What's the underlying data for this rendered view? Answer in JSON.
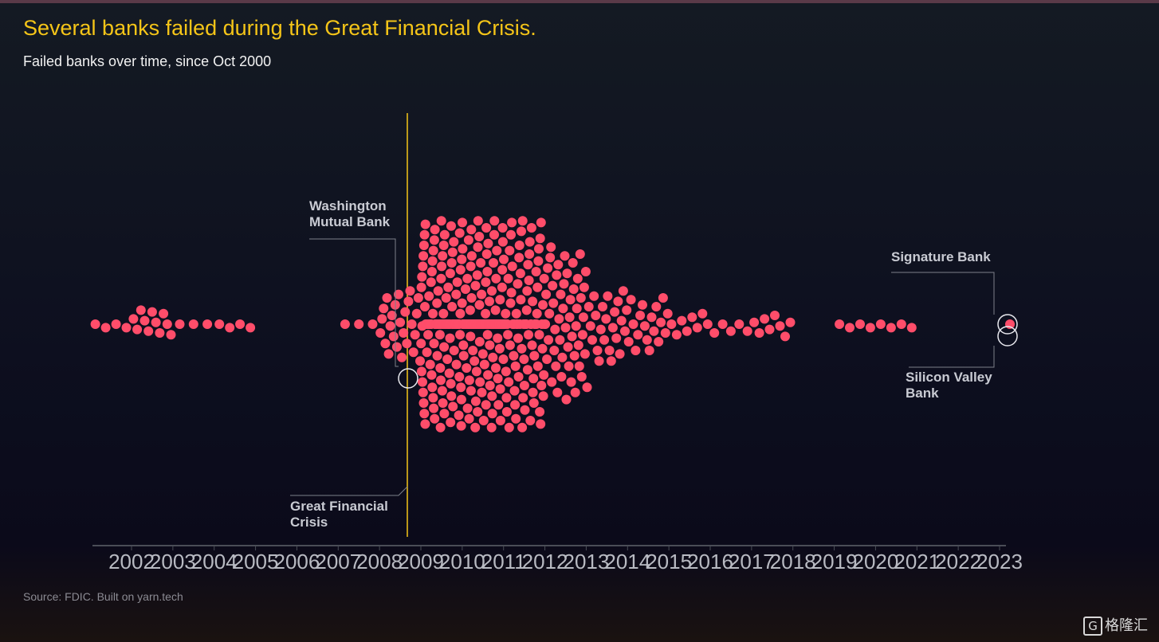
{
  "title": "Several banks failed during the Great Financial Crisis.",
  "subtitle": "Failed banks over time, since Oct 2000",
  "source": "Source: FDIC. Built on yarn.tech",
  "watermark": "格隆汇",
  "colors": {
    "dot": "#ff4d6a",
    "accent": "#f5c518",
    "annotation": "#c9cbd3"
  },
  "chart_data": {
    "type": "scatter",
    "subtype": "beeswarm",
    "title": "Several banks failed during the Great Financial Crisis.",
    "subtitle": "Failed banks over time, since Oct 2000",
    "x_ticks": [
      "2002",
      "2003",
      "2004",
      "2005",
      "2006",
      "2007",
      "2008",
      "2009",
      "2010",
      "2011",
      "2012",
      "2013",
      "2014",
      "2015",
      "2016",
      "2017",
      "2018",
      "2019",
      "2020",
      "2021",
      "2022",
      "2023"
    ],
    "xlim": [
      2001.5,
      2023.5
    ],
    "grid": false,
    "legend": "none",
    "yearly_failures": [
      {
        "year": 2001,
        "count": 4
      },
      {
        "year": 2002,
        "count": 11
      },
      {
        "year": 2003,
        "count": 3
      },
      {
        "year": 2004,
        "count": 4
      },
      {
        "year": 2005,
        "count": 0
      },
      {
        "year": 2006,
        "count": 0
      },
      {
        "year": 2007,
        "count": 3
      },
      {
        "year": 2008,
        "count": 25
      },
      {
        "year": 2009,
        "count": 140
      },
      {
        "year": 2010,
        "count": 157
      },
      {
        "year": 2011,
        "count": 92
      },
      {
        "year": 2012,
        "count": 51
      },
      {
        "year": 2013,
        "count": 24
      },
      {
        "year": 2014,
        "count": 18
      },
      {
        "year": 2015,
        "count": 8
      },
      {
        "year": 2016,
        "count": 5
      },
      {
        "year": 2017,
        "count": 8
      },
      {
        "year": 2018,
        "count": 0
      },
      {
        "year": 2019,
        "count": 4
      },
      {
        "year": 2020,
        "count": 4
      },
      {
        "year": 2021,
        "count": 0
      },
      {
        "year": 2022,
        "count": 0
      },
      {
        "year": 2023,
        "count": 2
      }
    ],
    "annotations": [
      {
        "lines": [
          "Washington",
          "Mutual Bank"
        ],
        "x": 2008.74
      },
      {
        "lines": [
          "Great Financial",
          "Crisis"
        ],
        "x": 2008.74
      },
      {
        "lines": [
          "Signature Bank"
        ],
        "x": 2023.2
      },
      {
        "lines": [
          "Silicon Valley",
          "Bank"
        ],
        "x": 2023.2
      }
    ]
  }
}
